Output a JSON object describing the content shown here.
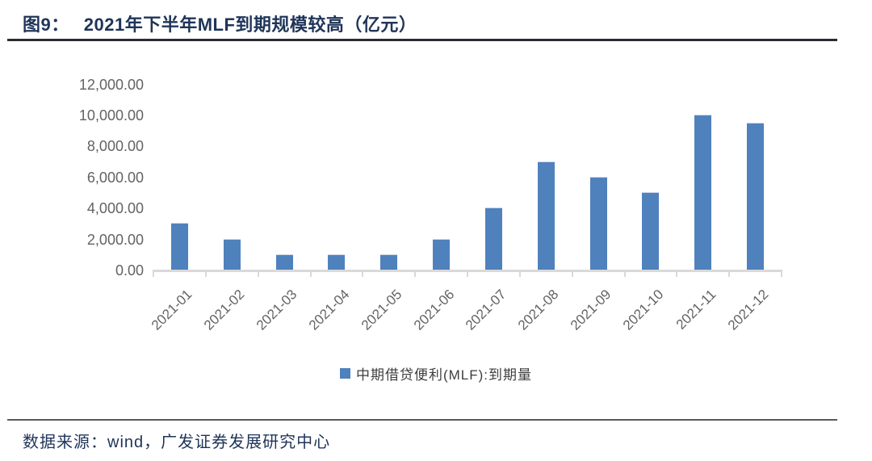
{
  "header": {
    "figure_label": "图9：",
    "title": "2021年下半年MLF到期规模较高（亿元）"
  },
  "chart_data": {
    "type": "bar",
    "title": "2021年下半年MLF到期规模较高（亿元）",
    "categories": [
      "2021-01",
      "2021-02",
      "2021-03",
      "2021-04",
      "2021-05",
      "2021-06",
      "2021-07",
      "2021-08",
      "2021-09",
      "2021-10",
      "2021-11",
      "2021-12"
    ],
    "series": [
      {
        "name": "中期借贷便利(MLF):到期量",
        "values": [
          3000,
          2000,
          1000,
          1000,
          1000,
          2000,
          4000,
          7000,
          6000,
          5000,
          10000,
          9500
        ]
      }
    ],
    "xlabel": "",
    "ylabel": "",
    "ylim": [
      0,
      12000
    ],
    "yticks": {
      "values": [
        0,
        2000,
        4000,
        6000,
        8000,
        10000,
        12000
      ],
      "labels": [
        "0.00",
        "2,000.00",
        "4,000.00",
        "6,000.00",
        "8,000.00",
        "10,000.00",
        "12,000.00"
      ]
    },
    "grid": false,
    "legend_position": "bottom",
    "x_tick_rotation_deg": 45,
    "colors": {
      "bar": "#4F81BD",
      "axis": "#D9D9D9",
      "tick_text": "#636363",
      "heading_text": "#1F3459"
    }
  },
  "footer": {
    "source": "数据来源：wind，广发证券发展研究中心"
  }
}
